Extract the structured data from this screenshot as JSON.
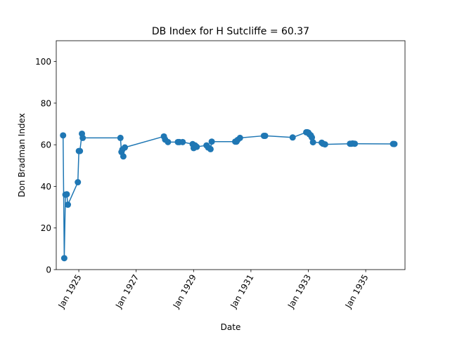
{
  "chart_data": {
    "type": "line",
    "title": "DB Index for H Sutcliffe = 60.37",
    "xlabel": "Date",
    "ylabel": "Don Bradman Index",
    "ylim": [
      0,
      110
    ],
    "xlim": [
      "1924-03-20",
      "1936-05-15"
    ],
    "y_ticks": [
      0,
      20,
      40,
      60,
      80,
      100
    ],
    "x_ticks": [
      {
        "date": "1925-01-01",
        "label": "Jan 1925"
      },
      {
        "date": "1927-01-01",
        "label": "Jan 1927"
      },
      {
        "date": "1929-01-01",
        "label": "Jan 1929"
      },
      {
        "date": "1931-01-01",
        "label": "Jan 1931"
      },
      {
        "date": "1933-01-01",
        "label": "Jan 1933"
      },
      {
        "date": "1935-01-01",
        "label": "Jan 1935"
      }
    ],
    "grid": false,
    "legend": "none",
    "color": "#1f77b4",
    "series": [
      {
        "x": [
          "1924-06-15",
          "1924-06-30",
          "1924-07-15",
          "1924-08-01",
          "1924-08-15",
          "1924-12-20",
          "1925-01-02",
          "1925-01-15",
          "1925-02-10",
          "1925-02-20",
          "1926-06-15",
          "1926-06-28",
          "1926-07-10",
          "1926-07-22",
          "1926-08-10",
          "1927-12-20",
          "1928-01-05",
          "1928-02-10",
          "1928-06-15",
          "1928-07-05",
          "1928-08-15",
          "1928-12-20",
          "1929-01-02",
          "1929-01-20",
          "1929-02-10",
          "1929-06-15",
          "1929-07-05",
          "1929-08-05",
          "1929-08-20",
          "1930-06-15",
          "1930-07-01",
          "1930-07-15",
          "1930-08-15",
          "1931-06-15",
          "1931-07-01",
          "1932-06-15",
          "1932-12-05",
          "1932-12-20",
          "1933-01-01",
          "1933-01-15",
          "1933-02-01",
          "1933-02-15",
          "1933-03-01",
          "1933-06-20",
          "1933-07-05",
          "1933-08-01",
          "1934-06-15",
          "1934-07-01",
          "1934-07-20",
          "1934-08-15",
          "1935-12-15",
          "1936-01-01"
        ],
        "y": [
          64.5,
          5.5,
          36,
          36.2,
          31.2,
          42,
          57,
          57,
          65.3,
          63.3,
          63.3,
          56.5,
          57.7,
          54.4,
          58.7,
          64,
          62.5,
          61.3,
          61.3,
          61.3,
          61.3,
          60.3,
          58.4,
          59.7,
          59,
          59.7,
          58.7,
          57.9,
          61.5,
          61.5,
          61.5,
          62.3,
          63.3,
          64.3,
          64.3,
          63.5,
          66,
          66,
          65.8,
          65,
          64.5,
          63.5,
          61.2,
          61,
          60.5,
          60.2,
          60.5,
          60.5,
          60.6,
          60.5,
          60.4,
          60.37
        ]
      }
    ]
  }
}
